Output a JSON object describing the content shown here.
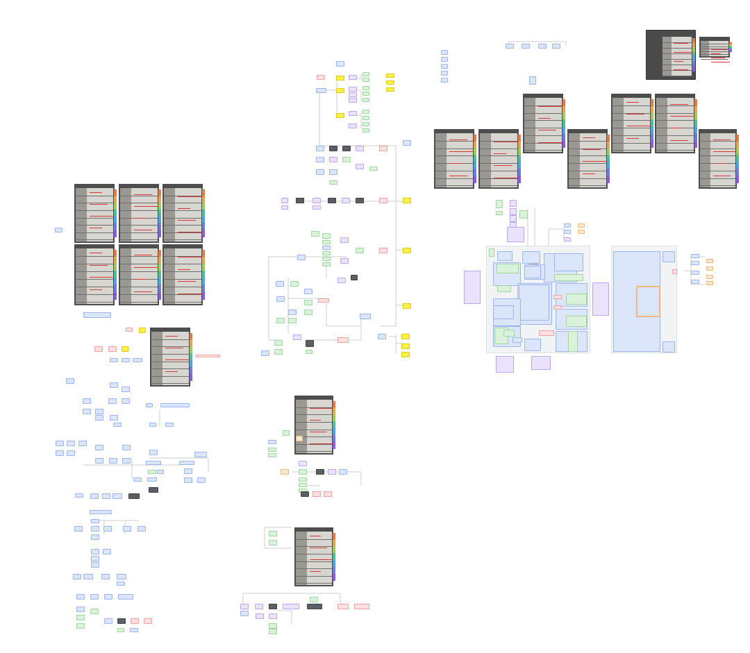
{
  "canvas": {
    "background": "#ffffff",
    "node_colors": {
      "blue": {
        "fill": "#dbe6fb",
        "border": "#9bb5ef"
      },
      "green": {
        "fill": "#d9f2d9",
        "border": "#9fd89f"
      },
      "purple": {
        "fill": "#ebe2fc",
        "border": "#bba6ee"
      },
      "yellow": {
        "fill": "#fff04d",
        "border": "#e3c900"
      },
      "red": {
        "fill": "#fde0e0",
        "border": "#f0a0a0"
      },
      "orange": {
        "fill": "#fde7cf",
        "border": "#f2b77a"
      },
      "dark": {
        "fill": "#5b5f66",
        "border": "#3f4247"
      }
    },
    "connector_color": "#c8ccd2",
    "card_color": "#d8d6d0"
  }
}
